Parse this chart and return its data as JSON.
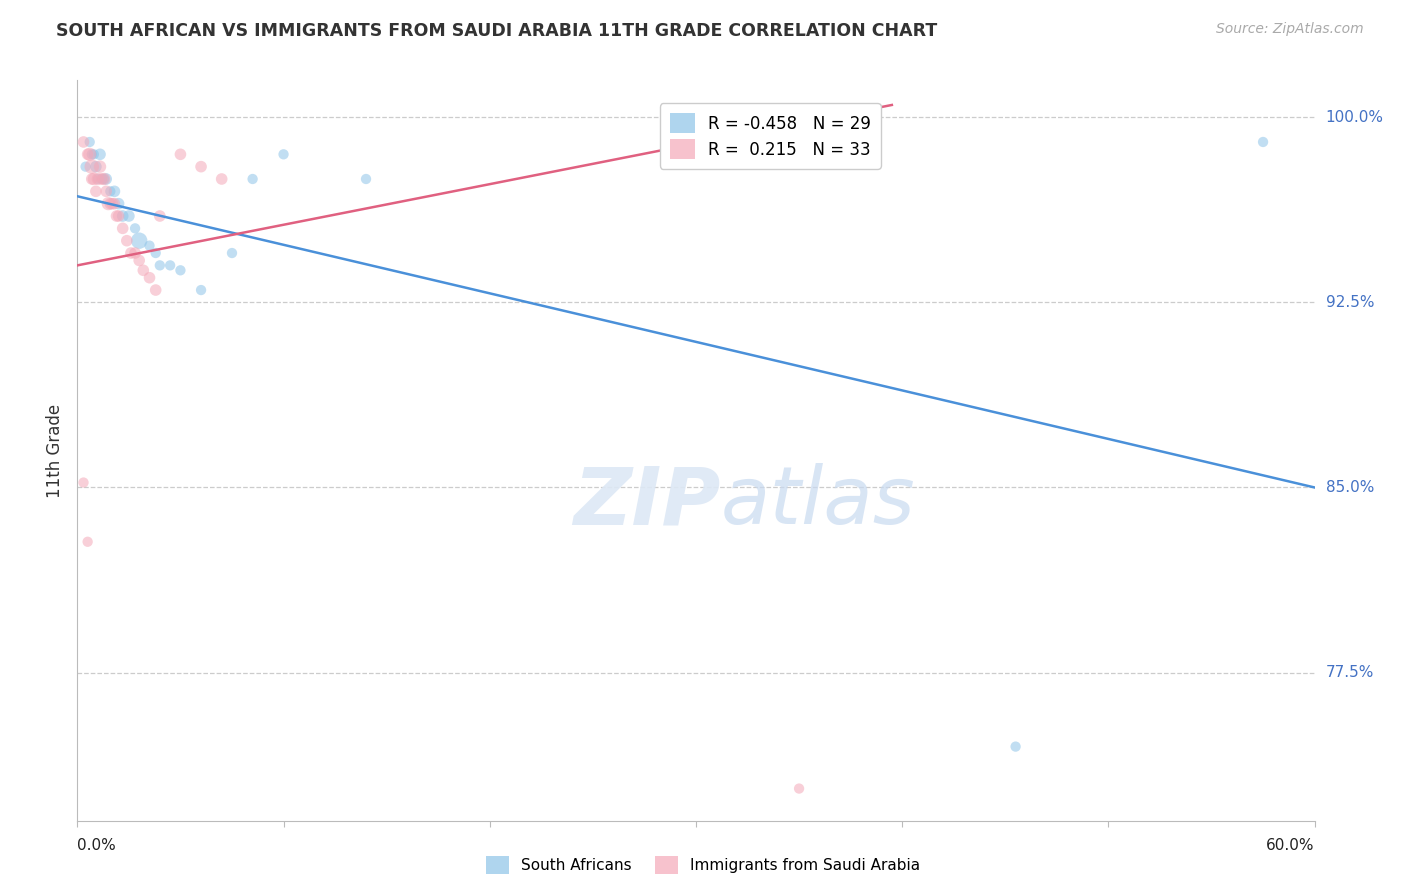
{
  "title": "SOUTH AFRICAN VS IMMIGRANTS FROM SAUDI ARABIA 11TH GRADE CORRELATION CHART",
  "source": "Source: ZipAtlas.com",
  "ylabel": "11th Grade",
  "ytick_labels": [
    "100.0%",
    "92.5%",
    "85.0%",
    "77.5%"
  ],
  "ytick_values": [
    1.0,
    0.925,
    0.85,
    0.775
  ],
  "xmin": 0.0,
  "xmax": 0.6,
  "ymin": 0.715,
  "ymax": 1.015,
  "blue_R": -0.458,
  "blue_N": 29,
  "pink_R": 0.215,
  "pink_N": 33,
  "blue_color": "#8ec4e8",
  "pink_color": "#f4a8b8",
  "blue_line_color": "#4a90d9",
  "pink_line_color": "#e06080",
  "blue_trend_x": [
    0.0,
    0.6
  ],
  "blue_trend_y": [
    0.968,
    0.85
  ],
  "pink_trend_x": [
    0.0,
    0.395
  ],
  "pink_trend_y": [
    0.94,
    1.005
  ],
  "blue_scatter_x": [
    0.004,
    0.006,
    0.007,
    0.008,
    0.009,
    0.01,
    0.011,
    0.012,
    0.013,
    0.014,
    0.016,
    0.018,
    0.02,
    0.022,
    0.025,
    0.028,
    0.03,
    0.035,
    0.038,
    0.04,
    0.045,
    0.05,
    0.06,
    0.075,
    0.085,
    0.1,
    0.14,
    0.455,
    0.575
  ],
  "blue_scatter_y": [
    0.98,
    0.99,
    0.985,
    0.985,
    0.98,
    0.975,
    0.985,
    0.975,
    0.975,
    0.975,
    0.97,
    0.97,
    0.965,
    0.96,
    0.96,
    0.955,
    0.95,
    0.948,
    0.945,
    0.94,
    0.94,
    0.938,
    0.93,
    0.945,
    0.975,
    0.985,
    0.975,
    0.745,
    0.99
  ],
  "blue_scatter_sizes": [
    55,
    55,
    55,
    55,
    70,
    55,
    70,
    55,
    55,
    70,
    55,
    70,
    70,
    70,
    70,
    55,
    140,
    55,
    55,
    55,
    55,
    55,
    55,
    55,
    55,
    55,
    55,
    55,
    55
  ],
  "pink_scatter_x": [
    0.003,
    0.005,
    0.006,
    0.007,
    0.007,
    0.008,
    0.009,
    0.01,
    0.011,
    0.012,
    0.013,
    0.014,
    0.015,
    0.016,
    0.017,
    0.018,
    0.019,
    0.02,
    0.022,
    0.024,
    0.026,
    0.028,
    0.03,
    0.032,
    0.035,
    0.038,
    0.04,
    0.05,
    0.06,
    0.07,
    0.003,
    0.005,
    0.35
  ],
  "pink_scatter_y": [
    0.99,
    0.985,
    0.985,
    0.98,
    0.975,
    0.975,
    0.97,
    0.975,
    0.98,
    0.975,
    0.975,
    0.97,
    0.965,
    0.965,
    0.965,
    0.965,
    0.96,
    0.96,
    0.955,
    0.95,
    0.945,
    0.945,
    0.942,
    0.938,
    0.935,
    0.93,
    0.96,
    0.985,
    0.98,
    0.975,
    0.852,
    0.828,
    0.728
  ],
  "pink_scatter_sizes": [
    70,
    70,
    90,
    110,
    70,
    80,
    70,
    80,
    80,
    70,
    80,
    70,
    90,
    70,
    70,
    70,
    70,
    70,
    70,
    70,
    70,
    70,
    70,
    70,
    70,
    70,
    70,
    70,
    70,
    70,
    55,
    55,
    55
  ]
}
